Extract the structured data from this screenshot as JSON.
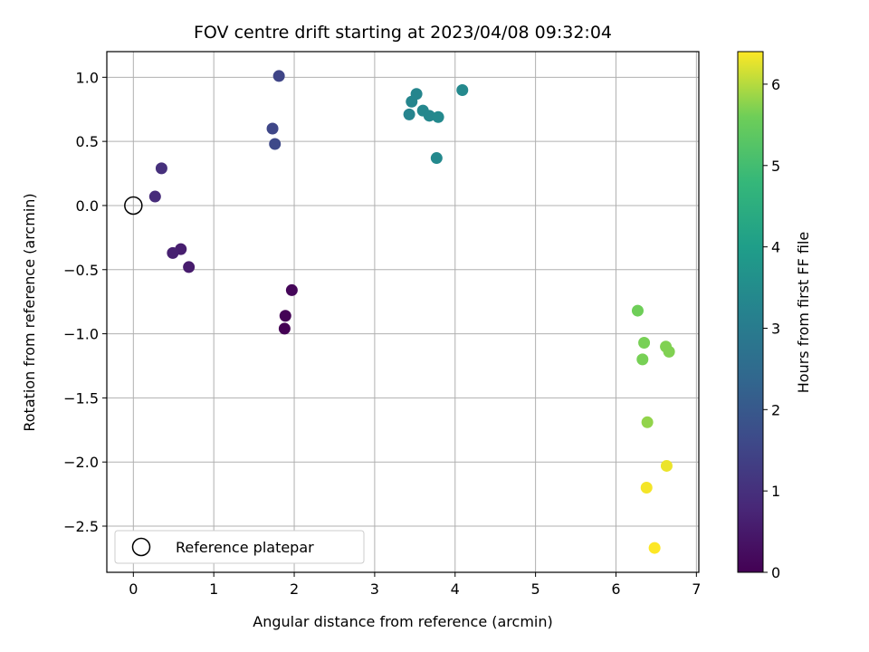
{
  "chart_data": {
    "type": "scatter",
    "title": "FOV centre drift starting at 2023/04/08 09:32:04",
    "xlabel": "Angular distance from reference (arcmin)",
    "ylabel": "Rotation from reference (arcmin)",
    "xlim": [
      -0.33,
      7.03
    ],
    "ylim": [
      -2.86,
      1.2
    ],
    "xticks": [
      0,
      1,
      2,
      3,
      4,
      5,
      6,
      7
    ],
    "xtick_labels": [
      "0",
      "1",
      "2",
      "3",
      "4",
      "5",
      "6",
      "7"
    ],
    "yticks": [
      1.0,
      0.5,
      0.0,
      -0.5,
      -1.0,
      -1.5,
      -2.0,
      -2.5
    ],
    "ytick_labels": [
      "1.0",
      "0.5",
      "0.0",
      "−0.5",
      "−1.0",
      "−1.5",
      "−2.0",
      "−2.5"
    ],
    "grid": true,
    "colormap": "viridis",
    "colorbar": {
      "label": "Hours from first FF file",
      "range": [
        0,
        6.4
      ],
      "ticks": [
        0,
        1,
        2,
        3,
        4,
        5,
        6
      ],
      "tick_labels": [
        "0",
        "1",
        "2",
        "3",
        "4",
        "5",
        "6"
      ]
    },
    "legend": {
      "placement": "lower-left",
      "entries": [
        "Reference platepar"
      ]
    },
    "reference_point": {
      "x": 0,
      "y": 0
    },
    "points": [
      {
        "x": 1.88,
        "y": -0.96,
        "hours": 0.0
      },
      {
        "x": 1.89,
        "y": -0.86,
        "hours": 0.05
      },
      {
        "x": 1.97,
        "y": -0.66,
        "hours": 0.1
      },
      {
        "x": 0.69,
        "y": -0.48,
        "hours": 0.55
      },
      {
        "x": 0.59,
        "y": -0.34,
        "hours": 0.6
      },
      {
        "x": 0.49,
        "y": -0.37,
        "hours": 0.65
      },
      {
        "x": 0.27,
        "y": 0.07,
        "hours": 0.9
      },
      {
        "x": 0.35,
        "y": 0.29,
        "hours": 1.0
      },
      {
        "x": 1.81,
        "y": 1.01,
        "hours": 1.5
      },
      {
        "x": 1.73,
        "y": 0.6,
        "hours": 1.55
      },
      {
        "x": 1.76,
        "y": 0.48,
        "hours": 1.6
      },
      {
        "x": 3.43,
        "y": 0.71,
        "hours": 3.25
      },
      {
        "x": 3.46,
        "y": 0.81,
        "hours": 3.3
      },
      {
        "x": 3.52,
        "y": 0.87,
        "hours": 3.3
      },
      {
        "x": 3.6,
        "y": 0.74,
        "hours": 3.35
      },
      {
        "x": 3.68,
        "y": 0.7,
        "hours": 3.35
      },
      {
        "x": 3.79,
        "y": 0.69,
        "hours": 3.4
      },
      {
        "x": 3.77,
        "y": 0.37,
        "hours": 3.4
      },
      {
        "x": 4.09,
        "y": 0.9,
        "hours": 3.4
      },
      {
        "x": 6.27,
        "y": -0.82,
        "hours": 5.6
      },
      {
        "x": 6.35,
        "y": -1.07,
        "hours": 5.65
      },
      {
        "x": 6.33,
        "y": -1.2,
        "hours": 5.65
      },
      {
        "x": 6.62,
        "y": -1.1,
        "hours": 5.7
      },
      {
        "x": 6.66,
        "y": -1.14,
        "hours": 5.7
      },
      {
        "x": 6.39,
        "y": -1.69,
        "hours": 5.8
      },
      {
        "x": 6.63,
        "y": -2.03,
        "hours": 6.3
      },
      {
        "x": 6.38,
        "y": -2.2,
        "hours": 6.35
      },
      {
        "x": 6.48,
        "y": -2.67,
        "hours": 6.4
      }
    ]
  }
}
